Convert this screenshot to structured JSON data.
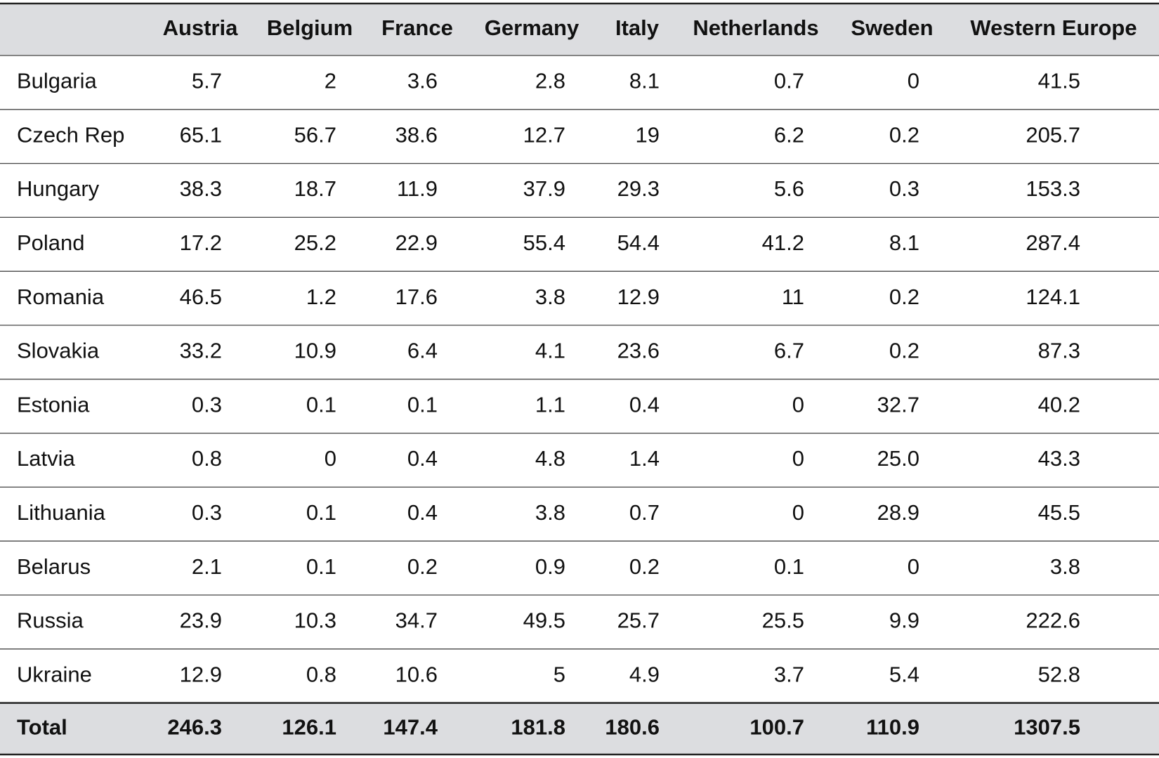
{
  "table": {
    "columns": [
      "Austria",
      "Belgium",
      "France",
      "Germany",
      "Italy",
      "Netherlands",
      "Sweden",
      "Western Europe"
    ],
    "rows": [
      {
        "label": "Bulgaria",
        "values": [
          "5.7",
          "2",
          "3.6",
          "2.8",
          "8.1",
          "0.7",
          "0",
          "41.5"
        ]
      },
      {
        "label": "Czech Rep",
        "values": [
          "65.1",
          "56.7",
          "38.6",
          "12.7",
          "19",
          "6.2",
          "0.2",
          "205.7"
        ]
      },
      {
        "label": "Hungary",
        "values": [
          "38.3",
          "18.7",
          "11.9",
          "37.9",
          "29.3",
          "5.6",
          "0.3",
          "153.3"
        ]
      },
      {
        "label": "Poland",
        "values": [
          "17.2",
          "25.2",
          "22.9",
          "55.4",
          "54.4",
          "41.2",
          "8.1",
          "287.4"
        ]
      },
      {
        "label": "Romania",
        "values": [
          "46.5",
          "1.2",
          "17.6",
          "3.8",
          "12.9",
          "11",
          "0.2",
          "124.1"
        ]
      },
      {
        "label": "Slovakia",
        "values": [
          "33.2",
          "10.9",
          "6.4",
          "4.1",
          "23.6",
          "6.7",
          "0.2",
          "87.3"
        ]
      },
      {
        "label": "Estonia",
        "values": [
          "0.3",
          "0.1",
          "0.1",
          "1.1",
          "0.4",
          "0",
          "32.7",
          "40.2"
        ]
      },
      {
        "label": "Latvia",
        "values": [
          "0.8",
          "0",
          "0.4",
          "4.8",
          "1.4",
          "0",
          "25.0",
          "43.3"
        ]
      },
      {
        "label": "Lithuania",
        "values": [
          "0.3",
          "0.1",
          "0.4",
          "3.8",
          "0.7",
          "0",
          "28.9",
          "45.5"
        ]
      },
      {
        "label": "Belarus",
        "values": [
          "2.1",
          "0.1",
          "0.2",
          "0.9",
          "0.2",
          "0.1",
          "0",
          "3.8"
        ]
      },
      {
        "label": "Russia",
        "values": [
          "23.9",
          "10.3",
          "34.7",
          "49.5",
          "25.7",
          "25.5",
          "9.9",
          "222.6"
        ]
      },
      {
        "label": "Ukraine",
        "values": [
          "12.9",
          "0.8",
          "10.6",
          "5",
          "4.9",
          "3.7",
          "5.4",
          "52.8"
        ]
      }
    ],
    "total": {
      "label": "Total",
      "values": [
        "246.3",
        "126.1",
        "147.4",
        "181.8",
        "180.6",
        "100.7",
        "110.9",
        "1307.5"
      ]
    }
  }
}
